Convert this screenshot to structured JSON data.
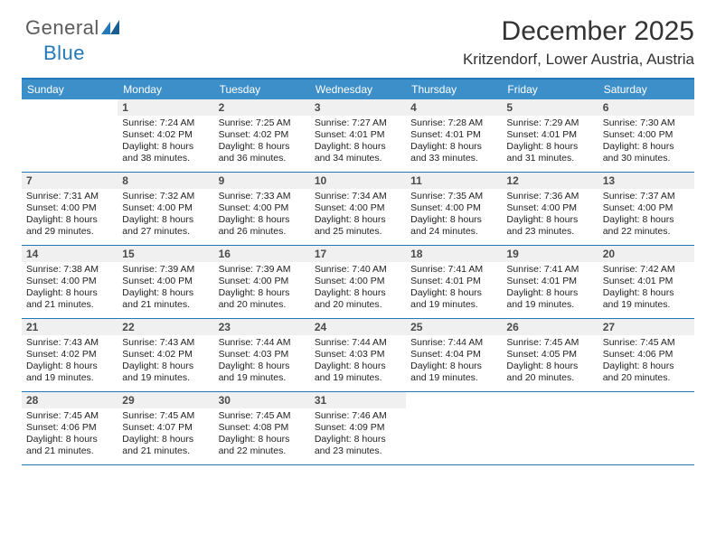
{
  "brand": {
    "name1": "General",
    "name2": "Blue",
    "accent": "#2478b8",
    "muted": "#5c5c5c"
  },
  "title": "December 2025",
  "location": "Kritzendorf, Lower Austria, Austria",
  "colors": {
    "header_bg": "#3d8fc9",
    "header_text": "#ffffff",
    "border": "#2478b8",
    "daynum_bg": "#f0f0f0",
    "daynum_text": "#4a4a4a",
    "body_text": "#222222",
    "page_bg": "#ffffff"
  },
  "fonts": {
    "title_pt": 30,
    "location_pt": 17,
    "dow_pt": 12,
    "daynum_pt": 12,
    "body_pt": 10.5
  },
  "days_of_week": [
    "Sunday",
    "Monday",
    "Tuesday",
    "Wednesday",
    "Thursday",
    "Friday",
    "Saturday"
  ],
  "weeks": [
    [
      {
        "n": "",
        "empty": true
      },
      {
        "n": "1",
        "sunrise": "7:24 AM",
        "sunset": "4:02 PM",
        "daylight": "8 hours and 38 minutes."
      },
      {
        "n": "2",
        "sunrise": "7:25 AM",
        "sunset": "4:02 PM",
        "daylight": "8 hours and 36 minutes."
      },
      {
        "n": "3",
        "sunrise": "7:27 AM",
        "sunset": "4:01 PM",
        "daylight": "8 hours and 34 minutes."
      },
      {
        "n": "4",
        "sunrise": "7:28 AM",
        "sunset": "4:01 PM",
        "daylight": "8 hours and 33 minutes."
      },
      {
        "n": "5",
        "sunrise": "7:29 AM",
        "sunset": "4:01 PM",
        "daylight": "8 hours and 31 minutes."
      },
      {
        "n": "6",
        "sunrise": "7:30 AM",
        "sunset": "4:00 PM",
        "daylight": "8 hours and 30 minutes."
      }
    ],
    [
      {
        "n": "7",
        "sunrise": "7:31 AM",
        "sunset": "4:00 PM",
        "daylight": "8 hours and 29 minutes."
      },
      {
        "n": "8",
        "sunrise": "7:32 AM",
        "sunset": "4:00 PM",
        "daylight": "8 hours and 27 minutes."
      },
      {
        "n": "9",
        "sunrise": "7:33 AM",
        "sunset": "4:00 PM",
        "daylight": "8 hours and 26 minutes."
      },
      {
        "n": "10",
        "sunrise": "7:34 AM",
        "sunset": "4:00 PM",
        "daylight": "8 hours and 25 minutes."
      },
      {
        "n": "11",
        "sunrise": "7:35 AM",
        "sunset": "4:00 PM",
        "daylight": "8 hours and 24 minutes."
      },
      {
        "n": "12",
        "sunrise": "7:36 AM",
        "sunset": "4:00 PM",
        "daylight": "8 hours and 23 minutes."
      },
      {
        "n": "13",
        "sunrise": "7:37 AM",
        "sunset": "4:00 PM",
        "daylight": "8 hours and 22 minutes."
      }
    ],
    [
      {
        "n": "14",
        "sunrise": "7:38 AM",
        "sunset": "4:00 PM",
        "daylight": "8 hours and 21 minutes."
      },
      {
        "n": "15",
        "sunrise": "7:39 AM",
        "sunset": "4:00 PM",
        "daylight": "8 hours and 21 minutes."
      },
      {
        "n": "16",
        "sunrise": "7:39 AM",
        "sunset": "4:00 PM",
        "daylight": "8 hours and 20 minutes."
      },
      {
        "n": "17",
        "sunrise": "7:40 AM",
        "sunset": "4:00 PM",
        "daylight": "8 hours and 20 minutes."
      },
      {
        "n": "18",
        "sunrise": "7:41 AM",
        "sunset": "4:01 PM",
        "daylight": "8 hours and 19 minutes."
      },
      {
        "n": "19",
        "sunrise": "7:41 AM",
        "sunset": "4:01 PM",
        "daylight": "8 hours and 19 minutes."
      },
      {
        "n": "20",
        "sunrise": "7:42 AM",
        "sunset": "4:01 PM",
        "daylight": "8 hours and 19 minutes."
      }
    ],
    [
      {
        "n": "21",
        "sunrise": "7:43 AM",
        "sunset": "4:02 PM",
        "daylight": "8 hours and 19 minutes."
      },
      {
        "n": "22",
        "sunrise": "7:43 AM",
        "sunset": "4:02 PM",
        "daylight": "8 hours and 19 minutes."
      },
      {
        "n": "23",
        "sunrise": "7:44 AM",
        "sunset": "4:03 PM",
        "daylight": "8 hours and 19 minutes."
      },
      {
        "n": "24",
        "sunrise": "7:44 AM",
        "sunset": "4:03 PM",
        "daylight": "8 hours and 19 minutes."
      },
      {
        "n": "25",
        "sunrise": "7:44 AM",
        "sunset": "4:04 PM",
        "daylight": "8 hours and 19 minutes."
      },
      {
        "n": "26",
        "sunrise": "7:45 AM",
        "sunset": "4:05 PM",
        "daylight": "8 hours and 20 minutes."
      },
      {
        "n": "27",
        "sunrise": "7:45 AM",
        "sunset": "4:06 PM",
        "daylight": "8 hours and 20 minutes."
      }
    ],
    [
      {
        "n": "28",
        "sunrise": "7:45 AM",
        "sunset": "4:06 PM",
        "daylight": "8 hours and 21 minutes."
      },
      {
        "n": "29",
        "sunrise": "7:45 AM",
        "sunset": "4:07 PM",
        "daylight": "8 hours and 21 minutes."
      },
      {
        "n": "30",
        "sunrise": "7:45 AM",
        "sunset": "4:08 PM",
        "daylight": "8 hours and 22 minutes."
      },
      {
        "n": "31",
        "sunrise": "7:46 AM",
        "sunset": "4:09 PM",
        "daylight": "8 hours and 23 minutes."
      },
      {
        "n": "",
        "empty": true
      },
      {
        "n": "",
        "empty": true
      },
      {
        "n": "",
        "empty": true
      }
    ]
  ],
  "labels": {
    "sunrise": "Sunrise:",
    "sunset": "Sunset:",
    "daylight": "Daylight:"
  }
}
